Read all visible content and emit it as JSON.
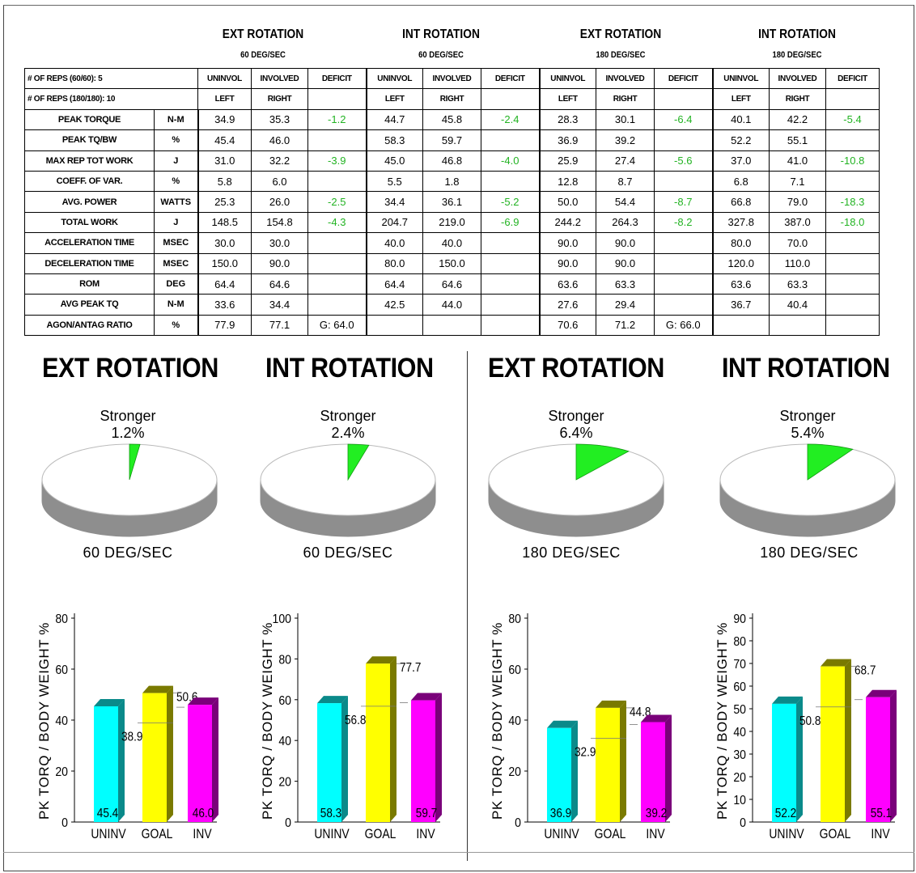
{
  "table": {
    "groups": [
      {
        "title": "EXT ROTATION",
        "speed": "60 DEG/SEC"
      },
      {
        "title": "INT ROTATION",
        "speed": "60 DEG/SEC"
      },
      {
        "title": "EXT ROTATION",
        "speed": "180 DEG/SEC"
      },
      {
        "title": "INT ROTATION",
        "speed": "180 DEG/SEC"
      }
    ],
    "reps60": "# OF REPS (60/60):  5",
    "reps180": "# OF REPS (180/180):  10",
    "col_headers": [
      "UNINVOL",
      "INVOLVED",
      "DEFICIT"
    ],
    "side_headers": [
      "LEFT",
      "RIGHT"
    ],
    "rows": [
      {
        "label": "PEAK TORQUE",
        "unit": "N-M",
        "cells": [
          "34.9",
          "35.3",
          "-1.2",
          "44.7",
          "45.8",
          "-2.4",
          "28.3",
          "30.1",
          "-6.4",
          "40.1",
          "42.2",
          "-5.4"
        ]
      },
      {
        "label": "PEAK TQ/BW",
        "unit": "%",
        "cells": [
          "45.4",
          "46.0",
          "",
          "58.3",
          "59.7",
          "",
          "36.9",
          "39.2",
          "",
          "52.2",
          "55.1",
          ""
        ]
      },
      {
        "label": "MAX REP TOT WORK",
        "unit": "J",
        "cells": [
          "31.0",
          "32.2",
          "-3.9",
          "45.0",
          "46.8",
          "-4.0",
          "25.9",
          "27.4",
          "-5.6",
          "37.0",
          "41.0",
          "-10.8"
        ]
      },
      {
        "label": "COEFF. OF VAR.",
        "unit": "%",
        "cells": [
          "5.8",
          "6.0",
          "",
          "5.5",
          "1.8",
          "",
          "12.8",
          "8.7",
          "",
          "6.8",
          "7.1",
          ""
        ]
      },
      {
        "label": "AVG. POWER",
        "unit": "WATTS",
        "cells": [
          "25.3",
          "26.0",
          "-2.5",
          "34.4",
          "36.1",
          "-5.2",
          "50.0",
          "54.4",
          "-8.7",
          "66.8",
          "79.0",
          "-18.3"
        ]
      },
      {
        "label": "TOTAL WORK",
        "unit": "J",
        "cells": [
          "148.5",
          "154.8",
          "-4.3",
          "204.7",
          "219.0",
          "-6.9",
          "244.2",
          "264.3",
          "-8.2",
          "327.8",
          "387.0",
          "-18.0"
        ]
      },
      {
        "label": "ACCELERATION TIME",
        "unit": "MSEC",
        "cells": [
          "30.0",
          "30.0",
          "",
          "40.0",
          "40.0",
          "",
          "90.0",
          "90.0",
          "",
          "80.0",
          "70.0",
          ""
        ]
      },
      {
        "label": "DECELERATION TIME",
        "unit": "MSEC",
        "cells": [
          "150.0",
          "90.0",
          "",
          "80.0",
          "150.0",
          "",
          "90.0",
          "90.0",
          "",
          "120.0",
          "110.0",
          ""
        ]
      },
      {
        "label": "ROM",
        "unit": "DEG",
        "cells": [
          "64.4",
          "64.6",
          "",
          "64.4",
          "64.6",
          "",
          "63.6",
          "63.3",
          "",
          "63.6",
          "63.3",
          ""
        ]
      },
      {
        "label": "AVG PEAK TQ",
        "unit": "N-M",
        "cells": [
          "33.6",
          "34.4",
          "",
          "42.5",
          "44.0",
          "",
          "27.6",
          "29.4",
          "",
          "36.7",
          "40.4",
          ""
        ]
      },
      {
        "label": "AGON/ANTAG RATIO",
        "unit": "%",
        "cells": [
          "77.9",
          "77.1",
          "G: 64.0",
          "",
          "",
          "",
          "70.6",
          "71.2",
          "G: 66.0",
          "",
          "",
          ""
        ]
      }
    ]
  },
  "colors": {
    "uninv": "#00ffff",
    "goal": "#ffff00",
    "inv": "#ff00ff",
    "deficit_text": "#22b322",
    "pie_slice": "#22ee22"
  },
  "chart_data": [
    {
      "type": "bar",
      "panel_title": "EXT ROTATION",
      "pie_label": "Stronger",
      "pie_value_text": "1.2%",
      "pie_value": 1.2,
      "speed": "60 DEG/SEC",
      "ylabel": "PK TORQ / BODY WEIGHT  %",
      "categories": [
        "UNINV",
        "GOAL",
        "INV"
      ],
      "values": [
        45.4,
        50.6,
        46.0
      ],
      "labels": [
        "45.4",
        "50.6",
        "46.0"
      ],
      "goal_range_marker": "38.9",
      "goal_range_marker_value": 38.9,
      "ylim": [
        0,
        80
      ],
      "yticks": [
        "0",
        "20",
        "40",
        "60",
        "80"
      ]
    },
    {
      "type": "bar",
      "panel_title": "INT ROTATION",
      "pie_label": "Stronger",
      "pie_value_text": "2.4%",
      "pie_value": 2.4,
      "speed": "60 DEG/SEC",
      "ylabel": "PK TORQ / BODY WEIGHT  %",
      "categories": [
        "UNINV",
        "GOAL",
        "INV"
      ],
      "values": [
        58.3,
        77.7,
        59.7
      ],
      "labels": [
        "58.3",
        "77.7",
        "59.7"
      ],
      "goal_range_marker": "56.8",
      "goal_range_marker_value": 56.8,
      "ylim": [
        0,
        100
      ],
      "yticks": [
        "0",
        "20",
        "40",
        "60",
        "80",
        "100"
      ]
    },
    {
      "type": "bar",
      "panel_title": "EXT ROTATION",
      "pie_label": "Stronger",
      "pie_value_text": "6.4%",
      "pie_value": 6.4,
      "speed": "180 DEG/SEC",
      "ylabel": "PK TORQ / BODY WEIGHT  %",
      "categories": [
        "UNINV",
        "GOAL",
        "INV"
      ],
      "values": [
        36.9,
        44.8,
        39.2
      ],
      "labels": [
        "36.9",
        "44.8",
        "39.2"
      ],
      "goal_range_marker": "32.9",
      "goal_range_marker_value": 32.9,
      "ylim": [
        0,
        80
      ],
      "yticks": [
        "0",
        "20",
        "40",
        "60",
        "80"
      ]
    },
    {
      "type": "bar",
      "panel_title": "INT ROTATION",
      "pie_label": "Stronger",
      "pie_value_text": "5.4%",
      "pie_value": 5.4,
      "speed": "180 DEG/SEC",
      "ylabel": "PK TORQ / BODY WEIGHT  %",
      "categories": [
        "UNINV",
        "GOAL",
        "INV"
      ],
      "values": [
        52.2,
        68.7,
        55.1
      ],
      "labels": [
        "52.2",
        "68.7",
        "55.1"
      ],
      "goal_range_marker": "50.8",
      "goal_range_marker_value": 50.8,
      "ylim": [
        0,
        90
      ],
      "yticks": [
        "0",
        "10",
        "20",
        "30",
        "40",
        "50",
        "60",
        "70",
        "80",
        "90"
      ]
    }
  ]
}
